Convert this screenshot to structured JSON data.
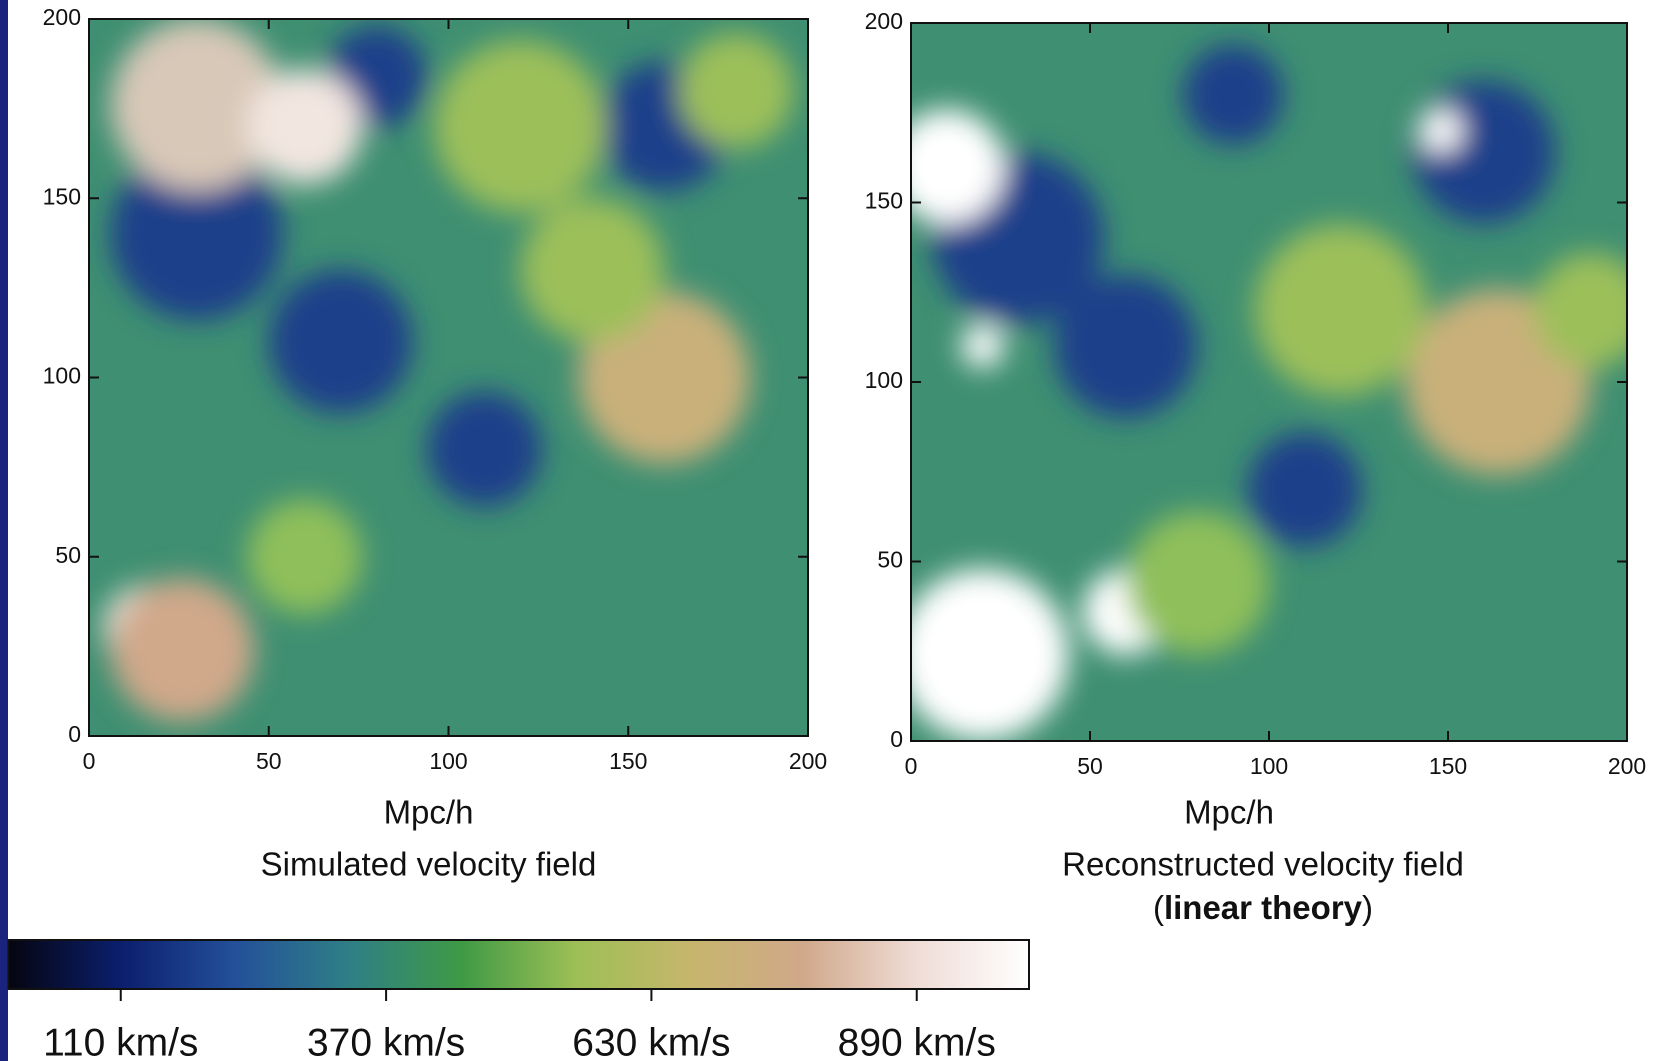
{
  "chart_data": [
    {
      "type": "heatmap",
      "title": "Simulated velocity field",
      "xlabel": "Mpc/h",
      "xlim": [
        0,
        200
      ],
      "ylim": [
        0,
        200
      ],
      "xticks": [
        0,
        50,
        100,
        150,
        200
      ],
      "yticks": [
        0,
        50,
        100,
        150,
        200
      ]
    },
    {
      "type": "heatmap",
      "title": "Reconstructed velocity field",
      "subtitle_parts": [
        "(",
        "linear theory",
        ")"
      ],
      "xlabel": "Mpc/h",
      "xlim": [
        0,
        200
      ],
      "ylim": [
        0,
        200
      ],
      "xticks": [
        0,
        50,
        100,
        150,
        200
      ],
      "yticks": [
        0,
        50,
        100,
        150,
        200
      ]
    }
  ],
  "colorbar": {
    "lim": [
      0,
      1000
    ],
    "ticks": [
      {
        "value": 110,
        "label": "110 km/s"
      },
      {
        "value": 370,
        "label": "370 km/s"
      },
      {
        "value": 630,
        "label": "630 km/s"
      },
      {
        "value": 890,
        "label": "890 km/s"
      }
    ],
    "colors": [
      "#050510",
      "#0b1f6e",
      "#24509a",
      "#2e7f86",
      "#3f9a45",
      "#9dbf55",
      "#c6b66c",
      "#d0a88a",
      "#efdcd6",
      "#ffffff"
    ]
  }
}
